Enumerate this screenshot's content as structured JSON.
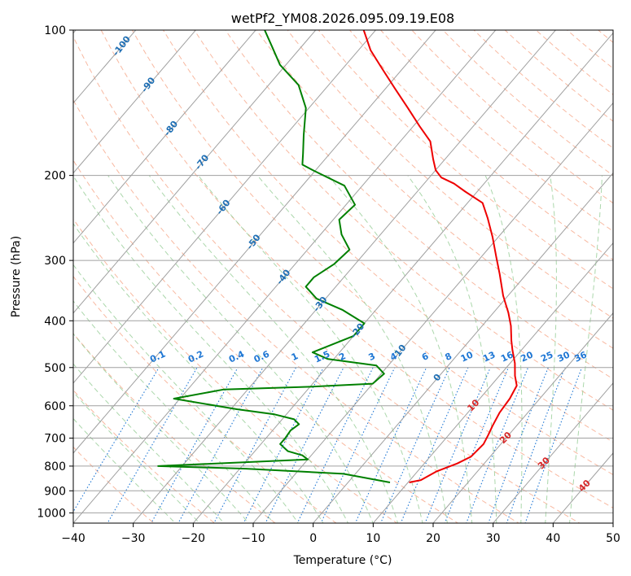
{
  "chart_data": {
    "type": "line",
    "title": "wetPf2_YM08.2026.095.09.19.E08",
    "xlabel": "Temperature (°C)",
    "ylabel": "Pressure (hPa)",
    "xlim": [
      -40,
      50
    ],
    "ylim": [
      1050,
      100
    ],
    "y_scale": "log",
    "x_ticks": [
      -40,
      -30,
      -20,
      -10,
      0,
      10,
      20,
      30,
      40,
      50
    ],
    "y_ticks": [
      100,
      200,
      300,
      400,
      500,
      600,
      700,
      800,
      900,
      1000
    ],
    "skew": true,
    "grid": true,
    "colors": {
      "temperature": "#ee0000",
      "dewpoint": "#008000",
      "isotherm": "#a0a0a0",
      "dry_adiabat": "#f5a182",
      "moist_adiabat": "#8fc98f",
      "mixing_ratio": "#1f77d4",
      "isotherm_label": "#1f6fb4",
      "adiabat_label": "#d62728"
    },
    "series": [
      {
        "key": "temperature",
        "points": [
          [
            10.2,
            865
          ],
          [
            11.8,
            855
          ],
          [
            13.2,
            820
          ],
          [
            15.5,
            790
          ],
          [
            16.8,
            765
          ],
          [
            17.1,
            720
          ],
          [
            16.6,
            690
          ],
          [
            16.0,
            660
          ],
          [
            15.3,
            620
          ],
          [
            15.0,
            580
          ],
          [
            14.3,
            545
          ],
          [
            12.6,
            520
          ],
          [
            10.8,
            490
          ],
          [
            8.5,
            460
          ],
          [
            7.0,
            440
          ],
          [
            4.8,
            410
          ],
          [
            2.5,
            385
          ],
          [
            -0.8,
            355
          ],
          [
            -4.5,
            320
          ],
          [
            -7.5,
            295
          ],
          [
            -11.0,
            268
          ],
          [
            -14.5,
            245
          ],
          [
            -17.5,
            228
          ],
          [
            -22.0,
            216
          ],
          [
            -25.0,
            208
          ],
          [
            -28.0,
            202
          ],
          [
            -30.0,
            195
          ],
          [
            -32.0,
            185
          ],
          [
            -35.0,
            170
          ],
          [
            -39.0,
            158
          ],
          [
            -43.5,
            145
          ],
          [
            -48.5,
            132
          ],
          [
            -53.5,
            120
          ],
          [
            -58.0,
            110
          ],
          [
            -62.0,
            100
          ]
        ]
      },
      {
        "key": "dewpoint",
        "points": [
          [
            7.0,
            865
          ],
          [
            -2.0,
            830
          ],
          [
            -19.0,
            810
          ],
          [
            -34.0,
            800
          ],
          [
            -10.0,
            775
          ],
          [
            -11.5,
            760
          ],
          [
            -14.5,
            745
          ],
          [
            -16.8,
            720
          ],
          [
            -16.8,
            700
          ],
          [
            -17.0,
            675
          ],
          [
            -16.5,
            655
          ],
          [
            -18.0,
            640
          ],
          [
            -22.0,
            625
          ],
          [
            -29.0,
            610
          ],
          [
            -41.0,
            580
          ],
          [
            -34.0,
            555
          ],
          [
            -20.0,
            548
          ],
          [
            -10.0,
            540
          ],
          [
            -9.5,
            515
          ],
          [
            -12.0,
            495
          ],
          [
            -21.0,
            480
          ],
          [
            -24.5,
            465
          ],
          [
            -20.0,
            430
          ],
          [
            -20.0,
            405
          ],
          [
            -25.5,
            380
          ],
          [
            -31.5,
            360
          ],
          [
            -35.0,
            340
          ],
          [
            -35.0,
            325
          ],
          [
            -33.5,
            305
          ],
          [
            -33.0,
            285
          ],
          [
            -36.5,
            265
          ],
          [
            -39.0,
            247
          ],
          [
            -38.5,
            230
          ],
          [
            -43.0,
            210
          ],
          [
            -50.0,
            196
          ],
          [
            -53.0,
            190
          ],
          [
            -54.5,
            180
          ],
          [
            -57.0,
            165
          ],
          [
            -60.5,
            145
          ],
          [
            -65.0,
            130
          ],
          [
            -71.0,
            118
          ],
          [
            -75.0,
            108
          ],
          [
            -78.5,
            100
          ]
        ]
      }
    ],
    "isotherm_labels": [
      "-100",
      "-90",
      "-80",
      "-70",
      "-60",
      "-50",
      "-40",
      "-30",
      "-20",
      "-10",
      "0"
    ],
    "mixing_ratio_labels": [
      "0.1",
      "0.2",
      "0.4",
      "0.6",
      "1",
      "1.5",
      "2",
      "3",
      "4",
      "6",
      "8",
      "10",
      "13",
      "16",
      "20",
      "25",
      "30",
      "36"
    ],
    "dry_adiabat_labels": [
      "10",
      "20",
      "30",
      "40"
    ]
  }
}
